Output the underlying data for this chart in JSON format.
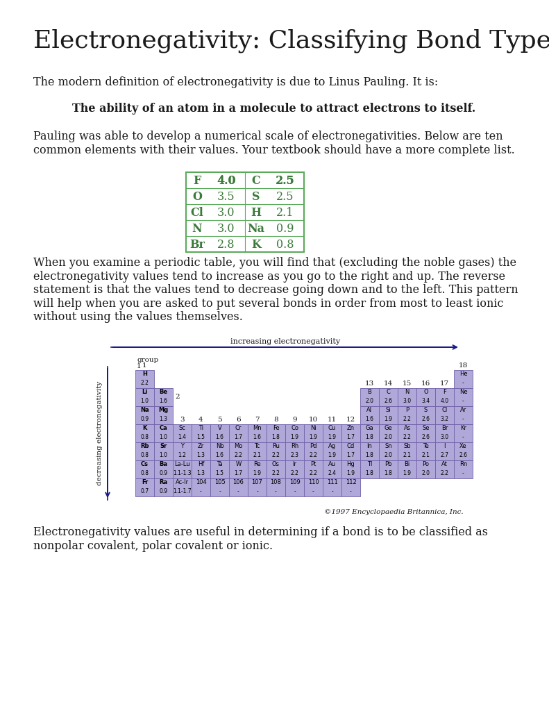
{
  "title": "Electronegativity: Classifying Bond Type",
  "title_fontsize": 26,
  "body_fontsize": 11.5,
  "bold_fontsize": 11.5,
  "text_color": "#1a1a1a",
  "bg_color": "#ffffff",
  "green_color": "#3a7a3a",
  "table_border_color": "#5aaa5a",
  "para1": "The modern definition of electronegativity is due to Linus Pauling. It is:",
  "para2_bold": "The ability of an atom in a molecule to attract electrons to itself.",
  "para3": "Pauling was able to develop a numerical scale of electronegativities. Below are ten\ncommon elements with their values. Your textbook should have a more complete list.",
  "table_data": [
    [
      "F",
      "4.0",
      "C",
      "2.5"
    ],
    [
      "O",
      "3.5",
      "S",
      "2.5"
    ],
    [
      "Cl",
      "3.0",
      "H",
      "2.1"
    ],
    [
      "N",
      "3.0",
      "Na",
      "0.9"
    ],
    [
      "Br",
      "2.8",
      "K",
      "0.8"
    ]
  ],
  "para4": "When you examine a periodic table, you will find that (excluding the noble gases) the\nelectronegativity values tend to increase as you go to the right and up. The reverse\nstatement is that the values tend to decrease going down and to the left. This pattern\nwill help when you are asked to put several bonds in order from most to least ionic\nwithout using the values themselves.",
  "para5": "Electronegativity values are useful in determining if a bond is to be classified as\nnonpolar covalent, polar covalent or ionic.",
  "copyright": "©1997 Encyclopaedia Britannica, Inc.",
  "purple_cell": "#b0a8d8",
  "purple_border": "#7060a8",
  "navy": "#1a1a8c",
  "pt_rows": [
    [
      1,
      1,
      "H",
      "2.2",
      true
    ],
    [
      1,
      18,
      "He",
      "-",
      false
    ],
    [
      2,
      1,
      "Li",
      "1.0",
      true
    ],
    [
      2,
      2,
      "Be",
      "1.6",
      true
    ],
    [
      2,
      13,
      "B",
      "2.0",
      false
    ],
    [
      2,
      14,
      "C",
      "2.6",
      false
    ],
    [
      2,
      15,
      "N",
      "3.0",
      false
    ],
    [
      2,
      16,
      "O",
      "3.4",
      false
    ],
    [
      2,
      17,
      "F",
      "4.0",
      false
    ],
    [
      2,
      18,
      "Ne",
      "-",
      false
    ],
    [
      3,
      1,
      "Na",
      "0.9",
      true
    ],
    [
      3,
      2,
      "Mg",
      "1.3",
      true
    ],
    [
      3,
      13,
      "Al",
      "1.6",
      false
    ],
    [
      3,
      14,
      "Si",
      "1.9",
      false
    ],
    [
      3,
      15,
      "P",
      "2.2",
      false
    ],
    [
      3,
      16,
      "S",
      "2.6",
      false
    ],
    [
      3,
      17,
      "Cl",
      "3.2",
      false
    ],
    [
      3,
      18,
      "Ar",
      "-",
      false
    ],
    [
      4,
      1,
      "K",
      "0.8",
      true
    ],
    [
      4,
      2,
      "Ca",
      "1.0",
      true
    ],
    [
      4,
      3,
      "Sc",
      "1.4",
      false
    ],
    [
      4,
      4,
      "Ti",
      "1.5",
      false
    ],
    [
      4,
      5,
      "V",
      "1.6",
      false
    ],
    [
      4,
      6,
      "Cr",
      "1.7",
      false
    ],
    [
      4,
      7,
      "Mn",
      "1.6",
      false
    ],
    [
      4,
      8,
      "Fe",
      "1.8",
      false
    ],
    [
      4,
      9,
      "Co",
      "1.9",
      false
    ],
    [
      4,
      10,
      "Ni",
      "1.9",
      false
    ],
    [
      4,
      11,
      "Cu",
      "1.9",
      false
    ],
    [
      4,
      12,
      "Zn",
      "1.7",
      false
    ],
    [
      4,
      13,
      "Ga",
      "1.8",
      false
    ],
    [
      4,
      14,
      "Ge",
      "2.0",
      false
    ],
    [
      4,
      15,
      "As",
      "2.2",
      false
    ],
    [
      4,
      16,
      "Se",
      "2.6",
      false
    ],
    [
      4,
      17,
      "Br",
      "3.0",
      false
    ],
    [
      4,
      18,
      "Kr",
      "-",
      false
    ],
    [
      5,
      1,
      "Rb",
      "0.8",
      true
    ],
    [
      5,
      2,
      "Sr",
      "1.0",
      true
    ],
    [
      5,
      3,
      "Y",
      "1.2",
      false
    ],
    [
      5,
      4,
      "Zr",
      "1.3",
      false
    ],
    [
      5,
      5,
      "Nb",
      "1.6",
      false
    ],
    [
      5,
      6,
      "Mo",
      "2.2",
      false
    ],
    [
      5,
      7,
      "Tc",
      "2.1",
      false
    ],
    [
      5,
      8,
      "Ru",
      "2.2",
      false
    ],
    [
      5,
      9,
      "Rh",
      "2.3",
      false
    ],
    [
      5,
      10,
      "Pd",
      "2.2",
      false
    ],
    [
      5,
      11,
      "Ag",
      "1.9",
      false
    ],
    [
      5,
      12,
      "Cd",
      "1.7",
      false
    ],
    [
      5,
      13,
      "In",
      "1.8",
      false
    ],
    [
      5,
      14,
      "Sn",
      "2.0",
      false
    ],
    [
      5,
      15,
      "Sb",
      "2.1",
      false
    ],
    [
      5,
      16,
      "Te",
      "2.1",
      false
    ],
    [
      5,
      17,
      "I",
      "2.7",
      false
    ],
    [
      5,
      18,
      "Xe",
      "2.6",
      false
    ],
    [
      6,
      1,
      "Cs",
      "0.8",
      true
    ],
    [
      6,
      2,
      "Ba",
      "0.9",
      true
    ],
    [
      6,
      3,
      "La-Lu",
      "1.1-1.3",
      false
    ],
    [
      6,
      4,
      "Hf",
      "1.3",
      false
    ],
    [
      6,
      5,
      "Ta",
      "1.5",
      false
    ],
    [
      6,
      6,
      "W",
      "1.7",
      false
    ],
    [
      6,
      7,
      "Re",
      "1.9",
      false
    ],
    [
      6,
      8,
      "Os",
      "2.2",
      false
    ],
    [
      6,
      9,
      "Ir",
      "2.2",
      false
    ],
    [
      6,
      10,
      "Pt",
      "2.2",
      false
    ],
    [
      6,
      11,
      "Au",
      "2.4",
      false
    ],
    [
      6,
      12,
      "Hg",
      "1.9",
      false
    ],
    [
      6,
      13,
      "Tl",
      "1.8",
      false
    ],
    [
      6,
      14,
      "Pb",
      "1.8",
      false
    ],
    [
      6,
      15,
      "Bi",
      "1.9",
      false
    ],
    [
      6,
      16,
      "Po",
      "2.0",
      false
    ],
    [
      6,
      17,
      "At",
      "2.2",
      false
    ],
    [
      6,
      18,
      "Rn",
      "-",
      false
    ],
    [
      7,
      1,
      "Fr",
      "0.7",
      true
    ],
    [
      7,
      2,
      "Ra",
      "0.9",
      true
    ],
    [
      7,
      3,
      "Ac-lr",
      "1.1-1.7",
      false
    ],
    [
      7,
      4,
      "104",
      "",
      false
    ],
    [
      7,
      5,
      "105",
      "",
      false
    ],
    [
      7,
      6,
      "106",
      "",
      false
    ],
    [
      7,
      7,
      "107",
      "",
      false
    ],
    [
      7,
      8,
      "108",
      "",
      false
    ],
    [
      7,
      9,
      "109",
      "",
      false
    ],
    [
      7,
      10,
      "110",
      "",
      false
    ],
    [
      7,
      11,
      "111",
      "",
      false
    ],
    [
      7,
      12,
      "112",
      "",
      false
    ]
  ]
}
